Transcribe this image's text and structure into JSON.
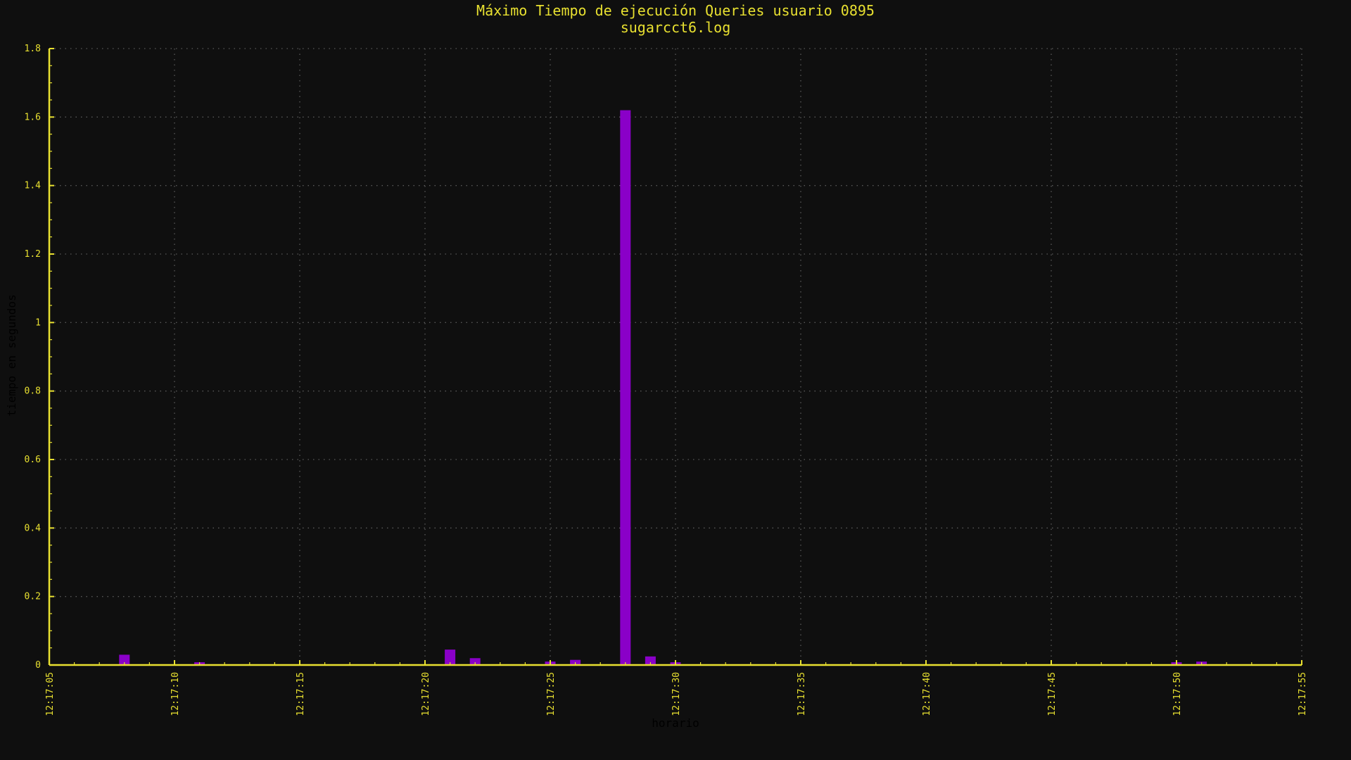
{
  "chart_data": {
    "type": "bar",
    "title": "Máximo Tiempo de ejecución Queries usuario 0895",
    "subtitle": "sugarcct6.log",
    "xlabel": "horario",
    "ylabel": "tiempo en segundos",
    "x_ticks": [
      "12:17:05",
      "12:17:10",
      "12:17:15",
      "12:17:20",
      "12:17:25",
      "12:17:30",
      "12:17:35",
      "12:17:40",
      "12:17:45",
      "12:17:50",
      "12:17:55"
    ],
    "y_ticks": [
      "0",
      "0.2",
      "0.4",
      "0.6",
      "0.8",
      "1",
      "1.2",
      "1.4",
      "1.6",
      "1.8"
    ],
    "xlim": [
      "12:17:05",
      "12:17:55"
    ],
    "ylim": [
      0,
      1.8
    ],
    "grid": true,
    "x": [
      "12:17:08",
      "12:17:11",
      "12:17:21",
      "12:17:22",
      "12:17:25",
      "12:17:26",
      "12:17:28",
      "12:17:29",
      "12:17:30",
      "12:17:50",
      "12:17:51"
    ],
    "values": [
      0.03,
      0.008,
      0.045,
      0.02,
      0.01,
      0.015,
      1.62,
      0.025,
      0.008,
      0.008,
      0.01
    ],
    "colors": {
      "bar": "#8a00c8",
      "axis": "#e8e030",
      "text": "#e8e030",
      "grid": "#5a5a5a",
      "background": "#0f0f0f",
      "axis_label": "#000000"
    }
  }
}
